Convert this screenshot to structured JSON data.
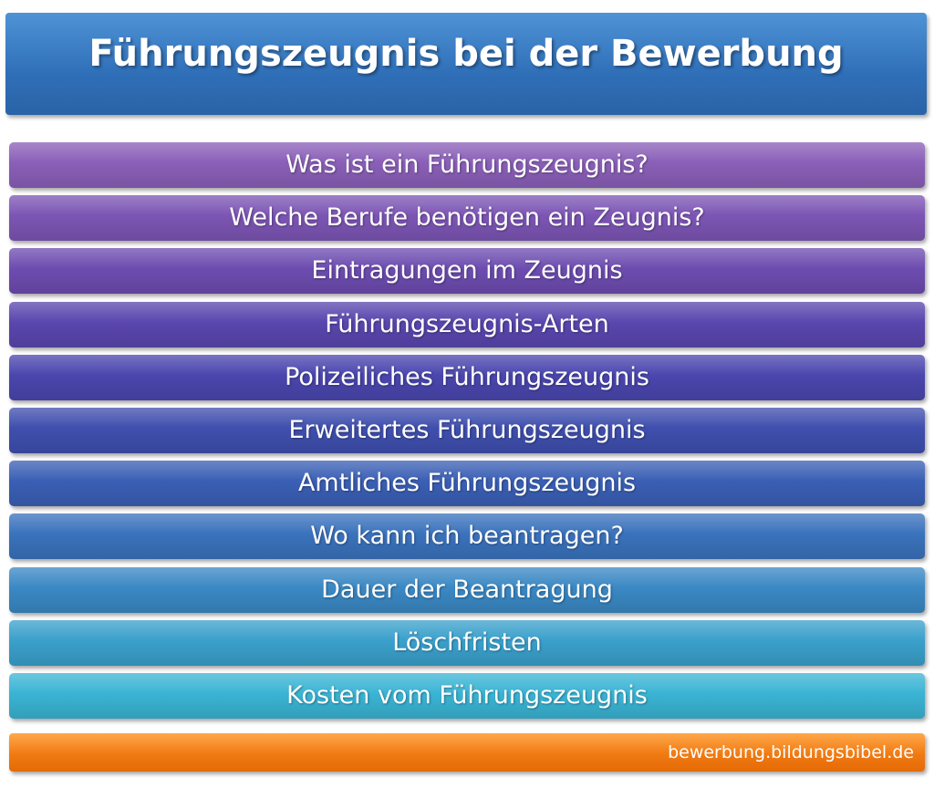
{
  "header": {
    "title": "Führungszeugnis bei der Bewerbung"
  },
  "items": [
    "Was ist ein Führungszeugnis?",
    "Welche Berufe benötigen ein Zeugnis?",
    "Eintragungen im Zeugnis",
    "Führungszeugnis-Arten",
    "Polizeiliches Führungszeugnis",
    "Erweitertes Führungszeugnis",
    "Amtliches Führungszeugnis",
    "Wo kann ich beantragen?",
    "Dauer der Beantragung",
    "Löschfristen",
    "Kosten vom Führungszeugnis"
  ],
  "footer": {
    "source": "bewerbung.bildungsbibel.de"
  }
}
